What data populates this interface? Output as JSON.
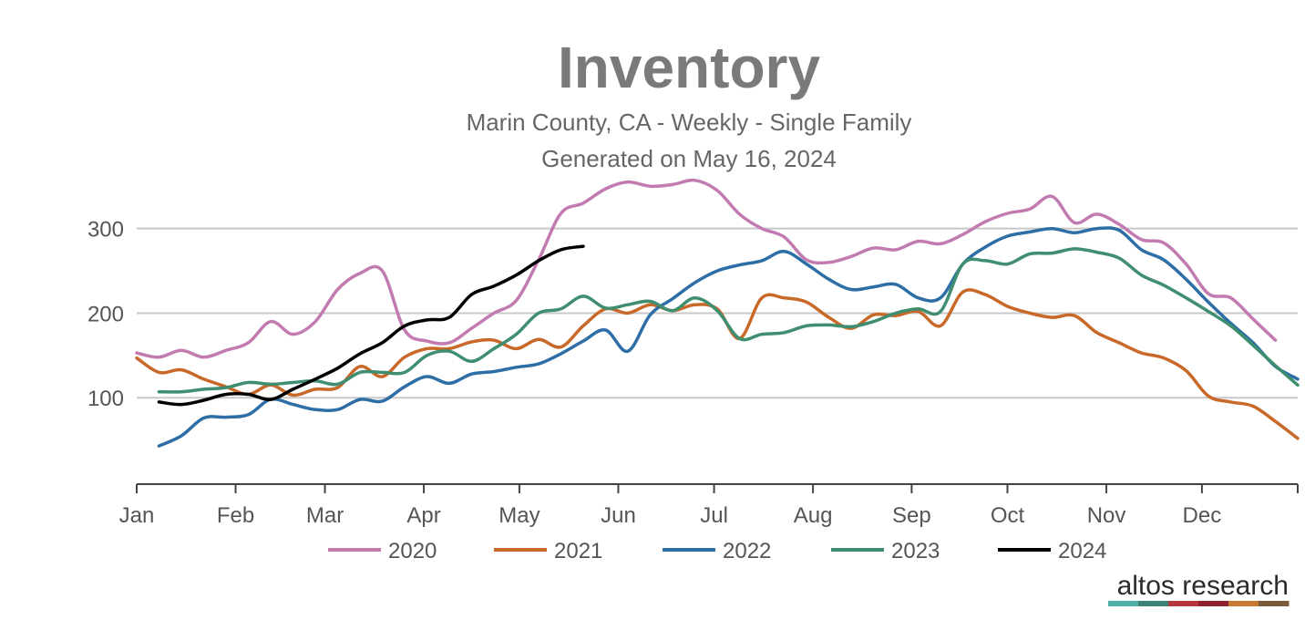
{
  "chart_data": {
    "type": "line",
    "title": "Inventory",
    "subtitle": "Marin County, CA - Weekly - Single Family",
    "generated": "Generated on May 16, 2024",
    "xlabel": "",
    "ylabel": "",
    "x_unit": "week of year",
    "xlim": [
      0,
      52
    ],
    "ylim": [
      0,
      360
    ],
    "grid": true,
    "legend_position": "bottom",
    "yticks": [
      {
        "value": 100,
        "label": "100"
      },
      {
        "value": 200,
        "label": "200"
      },
      {
        "value": 300,
        "label": "300"
      }
    ],
    "xticks": [
      {
        "value": 0,
        "label": "Jan"
      },
      {
        "value": 4.43,
        "label": "Feb"
      },
      {
        "value": 8.43,
        "label": "Mar"
      },
      {
        "value": 12.86,
        "label": "Apr"
      },
      {
        "value": 17.14,
        "label": "May"
      },
      {
        "value": 21.57,
        "label": "Jun"
      },
      {
        "value": 25.86,
        "label": "Jul"
      },
      {
        "value": 30.29,
        "label": "Aug"
      },
      {
        "value": 34.71,
        "label": "Sep"
      },
      {
        "value": 39.0,
        "label": "Oct"
      },
      {
        "value": 43.43,
        "label": "Nov"
      },
      {
        "value": 47.71,
        "label": "Dec"
      }
    ],
    "series": [
      {
        "name": "2020",
        "color": "#c27bb0",
        "x": [
          0,
          1,
          2,
          3,
          4,
          5,
          6,
          7,
          8,
          9,
          10,
          11,
          12,
          13,
          14,
          15,
          16,
          17,
          18,
          19,
          20,
          21,
          22,
          23,
          24,
          25,
          26,
          27,
          28,
          29,
          30,
          31,
          32,
          33,
          34,
          35,
          36,
          37,
          38,
          39,
          40,
          41,
          42,
          43,
          44,
          45,
          46,
          47,
          48,
          49,
          50,
          51
        ],
        "y": [
          153,
          148,
          156,
          148,
          156,
          165,
          190,
          175,
          190,
          228,
          247,
          250,
          180,
          167,
          165,
          182,
          200,
          215,
          263,
          318,
          330,
          347,
          355,
          350,
          352,
          357,
          345,
          317,
          300,
          290,
          263,
          260,
          267,
          277,
          275,
          285,
          282,
          293,
          308,
          318,
          323,
          338,
          307,
          317,
          305,
          287,
          283,
          258,
          223,
          218,
          193,
          168
        ]
      },
      {
        "name": "2021",
        "color": "#c8692a",
        "x": [
          0,
          1,
          2,
          3,
          4,
          5,
          6,
          7,
          8,
          9,
          10,
          11,
          12,
          13,
          14,
          15,
          16,
          17,
          18,
          19,
          20,
          21,
          22,
          23,
          24,
          25,
          26,
          27,
          28,
          29,
          30,
          31,
          32,
          33,
          34,
          35,
          36,
          37,
          38,
          39,
          40,
          41,
          42,
          43,
          44,
          45,
          46,
          47,
          48,
          49,
          50,
          51,
          52
        ],
        "y": [
          147,
          130,
          133,
          122,
          113,
          104,
          115,
          103,
          110,
          112,
          137,
          125,
          148,
          158,
          158,
          166,
          168,
          158,
          169,
          160,
          185,
          205,
          200,
          210,
          203,
          210,
          205,
          170,
          218,
          218,
          213,
          195,
          182,
          198,
          197,
          202,
          185,
          225,
          222,
          208,
          200,
          195,
          197,
          177,
          165,
          153,
          147,
          132,
          102,
          95,
          90,
          72,
          52
        ]
      },
      {
        "name": "2022",
        "color": "#2e6ea6",
        "x": [
          1,
          2,
          3,
          4,
          5,
          6,
          7,
          8,
          9,
          10,
          11,
          12,
          13,
          14,
          15,
          16,
          17,
          18,
          19,
          20,
          21,
          22,
          23,
          24,
          25,
          26,
          27,
          28,
          29,
          30,
          31,
          32,
          33,
          34,
          35,
          36,
          37,
          38,
          39,
          40,
          41,
          42,
          43,
          44,
          45,
          46,
          47,
          48,
          49,
          50,
          51,
          52
        ],
        "y": [
          43,
          55,
          76,
          77,
          80,
          98,
          92,
          86,
          86,
          98,
          96,
          113,
          125,
          117,
          128,
          131,
          136,
          140,
          152,
          167,
          180,
          155,
          198,
          217,
          236,
          250,
          257,
          262,
          273,
          258,
          240,
          228,
          231,
          234,
          218,
          218,
          258,
          278,
          291,
          296,
          300,
          295,
          300,
          298,
          275,
          263,
          240,
          213,
          188,
          165,
          137,
          122
        ]
      },
      {
        "name": "2023",
        "color": "#3e8e6f",
        "x": [
          1,
          2,
          3,
          4,
          5,
          6,
          7,
          8,
          9,
          10,
          11,
          12,
          13,
          14,
          15,
          16,
          17,
          18,
          19,
          20,
          21,
          22,
          23,
          24,
          25,
          26,
          27,
          28,
          29,
          30,
          31,
          32,
          33,
          34,
          35,
          36,
          37,
          38,
          39,
          40,
          41,
          42,
          43,
          44,
          45,
          46,
          47,
          48,
          49,
          50,
          51,
          52
        ],
        "y": [
          107,
          107,
          110,
          112,
          118,
          116,
          118,
          120,
          116,
          130,
          130,
          130,
          150,
          155,
          143,
          158,
          175,
          200,
          205,
          220,
          206,
          210,
          214,
          203,
          218,
          203,
          170,
          175,
          177,
          185,
          186,
          184,
          190,
          200,
          205,
          202,
          258,
          262,
          258,
          270,
          271,
          276,
          272,
          265,
          245,
          233,
          218,
          202,
          185,
          162,
          138,
          115
        ]
      },
      {
        "name": "2024",
        "color": "#000000",
        "x": [
          1,
          2,
          3,
          4,
          5,
          6,
          7,
          8,
          9,
          10,
          11,
          12,
          13,
          14,
          15,
          16,
          17,
          18,
          19,
          20
        ],
        "y": [
          95,
          92,
          97,
          104,
          104,
          98,
          110,
          122,
          135,
          152,
          165,
          185,
          192,
          195,
          222,
          232,
          245,
          262,
          275,
          279
        ]
      }
    ]
  },
  "brand": {
    "name": "altos research",
    "stripe_colors": [
      "#4fb0a7",
      "#3d8277",
      "#b5363c",
      "#8e2030",
      "#c97a31",
      "#7a5a3a"
    ]
  }
}
